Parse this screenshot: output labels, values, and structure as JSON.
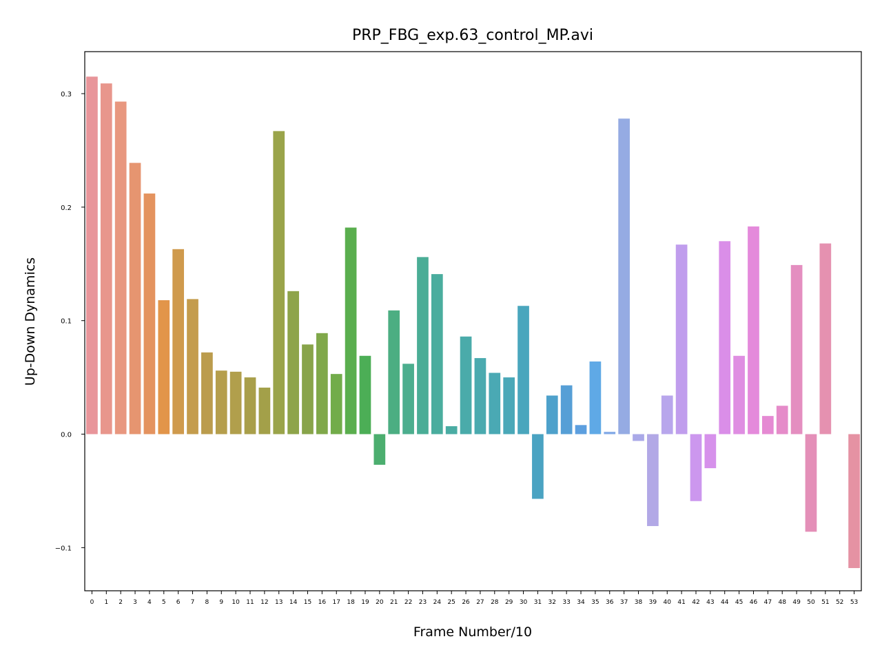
{
  "chart_data": {
    "type": "bar",
    "title": "PRP_FBG_exp.63_control_MP.avi",
    "xlabel": "Frame Number/10",
    "ylabel": "Up-Down Dynamics",
    "ylim": [
      -0.138,
      0.337
    ],
    "yticks": [
      -0.1,
      0.0,
      0.1,
      0.2,
      0.3
    ],
    "ytick_labels": [
      "−0.1",
      "0.0",
      "0.1",
      "0.2",
      "0.3"
    ],
    "grid": false,
    "categories": [
      "0",
      "1",
      "2",
      "3",
      "4",
      "5",
      "6",
      "7",
      "8",
      "9",
      "10",
      "11",
      "12",
      "13",
      "14",
      "15",
      "16",
      "17",
      "18",
      "19",
      "20",
      "21",
      "22",
      "23",
      "24",
      "25",
      "26",
      "27",
      "28",
      "29",
      "30",
      "31",
      "32",
      "33",
      "34",
      "35",
      "36",
      "37",
      "38",
      "39",
      "40",
      "41",
      "42",
      "43",
      "44",
      "45",
      "46",
      "47",
      "48",
      "49",
      "50",
      "51",
      "52",
      "53"
    ],
    "values": [
      0.315,
      0.309,
      0.293,
      0.239,
      0.212,
      0.118,
      0.163,
      0.119,
      0.072,
      0.056,
      0.055,
      0.05,
      0.041,
      0.267,
      0.126,
      0.079,
      0.089,
      0.053,
      0.182,
      0.069,
      -0.027,
      0.109,
      0.062,
      0.156,
      0.141,
      0.007,
      0.086,
      0.067,
      0.054,
      0.05,
      0.113,
      -0.057,
      0.034,
      0.043,
      0.008,
      0.064,
      0.002,
      0.278,
      -0.006,
      -0.081,
      0.034,
      0.167,
      -0.059,
      -0.03,
      0.17,
      0.069,
      0.183,
      0.016,
      0.025,
      0.149,
      -0.086,
      0.168,
      null,
      -0.118
    ],
    "colors": [
      "#e8959a",
      "#e8968c",
      "#e8977f",
      "#e69570",
      "#e4935f",
      "#e2954a",
      "#cf9a4d",
      "#c49c4d",
      "#bb9c4d",
      "#b59e4c",
      "#b19f4c",
      "#a99f4a",
      "#a3a049",
      "#9aa44a",
      "#8ea44a",
      "#88a44a",
      "#80a84a",
      "#72ac4a",
      "#5aae4e",
      "#4cae56",
      "#4cae6f",
      "#4cae82",
      "#4cae8e",
      "#4aad96",
      "#4aad9e",
      "#4aaca3",
      "#4aabaa",
      "#4aaaaf",
      "#4aa9b4",
      "#4aa8b8",
      "#4aa6bd",
      "#4aa3c2",
      "#4ea1cb",
      "#569fd6",
      "#5c9fdf",
      "#5fa9e6",
      "#80a8e6",
      "#95abe3",
      "#aaa9e8",
      "#b2a8e6",
      "#b8a6ec",
      "#c09ded",
      "#cc97ee",
      "#d691eb",
      "#da8ee8",
      "#df8ee2",
      "#e48adb",
      "#e58ad3",
      "#e58bc9",
      "#e48ec0",
      "#e48fb8",
      "#e591b0",
      "#e592a8",
      "#e592a3"
    ]
  }
}
